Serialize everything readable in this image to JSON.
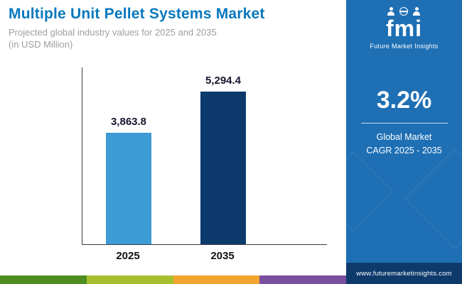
{
  "header": {
    "title": "Multiple Unit Pellet Systems Market",
    "subtitle_line1": "Projected global industry values for 2025 and 2035",
    "subtitle_line2": "(in USD Million)"
  },
  "chart_data": {
    "type": "bar",
    "title": "Multiple Unit Pellet Systems Market",
    "subtitle": "Projected global industry values for 2025 and 2035 (in USD Million)",
    "categories": [
      "2025",
      "2035"
    ],
    "values": [
      3863.8,
      5294.4
    ],
    "value_labels": [
      "3,863.8",
      "5,294.4"
    ],
    "bar_colors": [
      "#3d9bd5",
      "#0d3a6d"
    ],
    "xlabel": "",
    "ylabel": "",
    "ylim": [
      0,
      5600
    ],
    "grid": false,
    "legend": false
  },
  "sidebar": {
    "logo_text": "fmi",
    "logo_tagline": "Future Market Insights",
    "cagr_value": "3.2%",
    "cagr_line1": "Global Market",
    "cagr_line2": "CAGR 2025 - 2035",
    "footer_url": "www.futuremarketinsights.com"
  },
  "colors": {
    "title_blue": "#0878be",
    "panel_blue": "#1e6fb4",
    "footer_navy": "#0e3a6b",
    "stripes": [
      "#4c8e1f",
      "#a6bf2f",
      "#f2a52e",
      "#7b4fa0"
    ]
  }
}
